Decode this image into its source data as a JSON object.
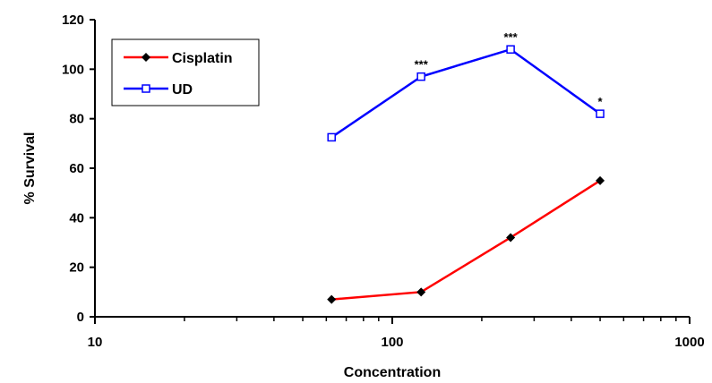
{
  "chart_data": {
    "type": "line",
    "title": "",
    "xlabel": "Concentration",
    "ylabel": "% Survival",
    "xscale": "log",
    "xlim": [
      10,
      1000
    ],
    "ylim": [
      0,
      120
    ],
    "x_ticks": [
      10,
      100,
      1000
    ],
    "x_tick_labels": [
      "10",
      "100",
      "1000"
    ],
    "y_ticks": [
      0,
      20,
      40,
      60,
      80,
      100,
      120
    ],
    "y_tick_labels": [
      "0",
      "20",
      "40",
      "60",
      "80",
      "100",
      "120"
    ],
    "grid": false,
    "legend_position": "top-left",
    "series": [
      {
        "name": "Cisplatin",
        "color": "#ff0000",
        "marker": "filled-diamond",
        "x": [
          62.5,
          125,
          250,
          500
        ],
        "y": [
          7,
          10,
          32,
          55
        ]
      },
      {
        "name": "UD",
        "color": "#0000ff",
        "marker": "open-square",
        "x": [
          62.5,
          125,
          250,
          500
        ],
        "y": [
          72.5,
          97,
          108,
          82
        ]
      }
    ],
    "annotations": [
      {
        "text": "***",
        "x": 125,
        "y": 97
      },
      {
        "text": "***",
        "x": 250,
        "y": 108
      },
      {
        "text": "*",
        "x": 500,
        "y": 82
      }
    ]
  }
}
